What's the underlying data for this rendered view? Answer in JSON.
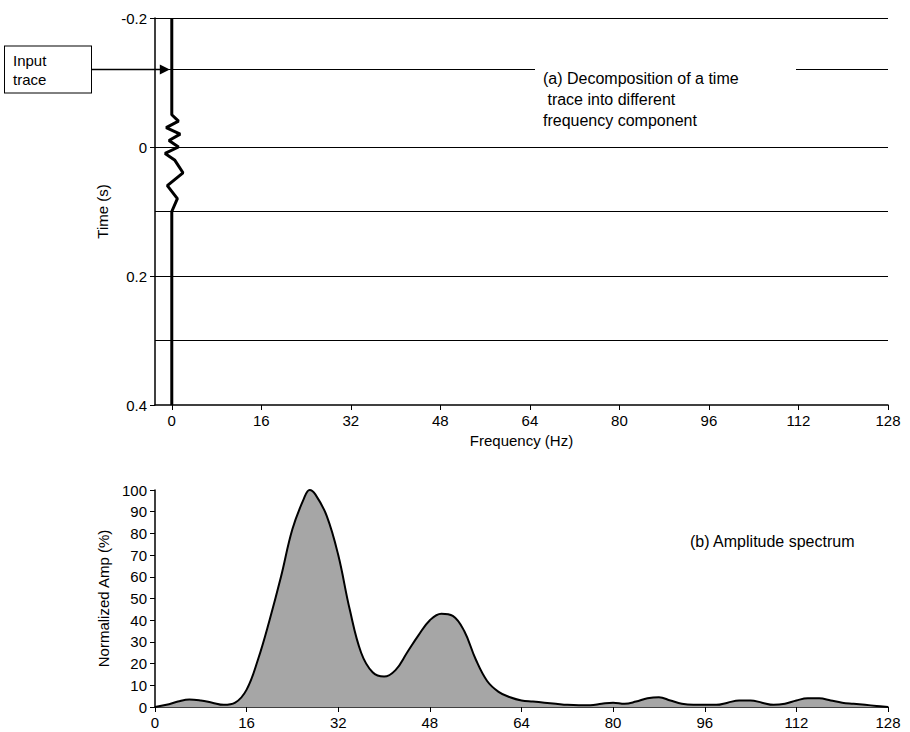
{
  "chart_data": [
    {
      "type": "decomposition",
      "title": "(a) Decomposition of a time trace into different frequency component",
      "annotation": "Input trace",
      "x_label": "Frequency (Hz)",
      "y_label": "Time (s)",
      "xlim": [
        -3,
        128
      ],
      "xticks": [
        0,
        16,
        32,
        48,
        64,
        80,
        96,
        112,
        128
      ],
      "ylim": [
        -0.2,
        0.4
      ],
      "yticks": [
        -0.2,
        0,
        0.2,
        0.4
      ],
      "input_trace_time": [
        -0.2,
        -0.05,
        -0.04,
        -0.03,
        -0.02,
        -0.01,
        0,
        0.01,
        0.02,
        0.04,
        0.06,
        0.08,
        0.1,
        0.4
      ],
      "input_trace_amplitude": [
        0,
        0,
        1.2,
        -1,
        1.5,
        -0.5,
        1.2,
        -1.2,
        0.5,
        2,
        -0.8,
        1,
        0,
        0
      ],
      "arrow_time": -0.12,
      "time_lines": [
        -0.2,
        -0.12,
        0,
        0.1,
        0.2,
        0.3
      ],
      "color": "#000000"
    },
    {
      "type": "area",
      "title": "(b) Amplitude spectrum",
      "y_label": "Normalized Amp (%)",
      "x": [
        0,
        2,
        4,
        6,
        8,
        10,
        12,
        14,
        16,
        18,
        20,
        22,
        24,
        26,
        27,
        28,
        30,
        32,
        34,
        36,
        38,
        40,
        42,
        44,
        46,
        48,
        50,
        52,
        54,
        56,
        58,
        60,
        62,
        64,
        66,
        68,
        70,
        72,
        74,
        76,
        78,
        80,
        82,
        84,
        86,
        88,
        90,
        92,
        94,
        96,
        98,
        100,
        102,
        104,
        106,
        108,
        110,
        112,
        114,
        116,
        118,
        120,
        122,
        124,
        126,
        128
      ],
      "values": [
        0,
        1,
        2.5,
        3.5,
        3,
        2,
        1,
        2,
        8,
        22,
        40,
        60,
        82,
        96,
        100,
        98,
        88,
        70,
        45,
        25,
        16,
        14,
        17,
        25,
        33,
        40,
        43,
        42,
        35,
        22,
        12,
        7,
        4.5,
        3,
        2.5,
        2,
        1.5,
        1,
        0.8,
        0.8,
        1.5,
        2,
        1.5,
        2.5,
        4,
        4.5,
        3,
        1.5,
        1,
        1,
        1,
        2,
        3,
        3,
        2,
        1,
        1.5,
        3,
        4,
        4,
        3,
        2,
        1.5,
        1,
        0.5,
        0
      ],
      "color": "#a6a6a6",
      "xlim": [
        0,
        128
      ],
      "xticks": [
        0,
        16,
        32,
        48,
        64,
        80,
        96,
        112,
        128
      ],
      "ylim": [
        0,
        100
      ],
      "yticks": [
        0,
        10,
        20,
        30,
        40,
        50,
        60,
        70,
        80,
        90,
        100
      ]
    }
  ]
}
